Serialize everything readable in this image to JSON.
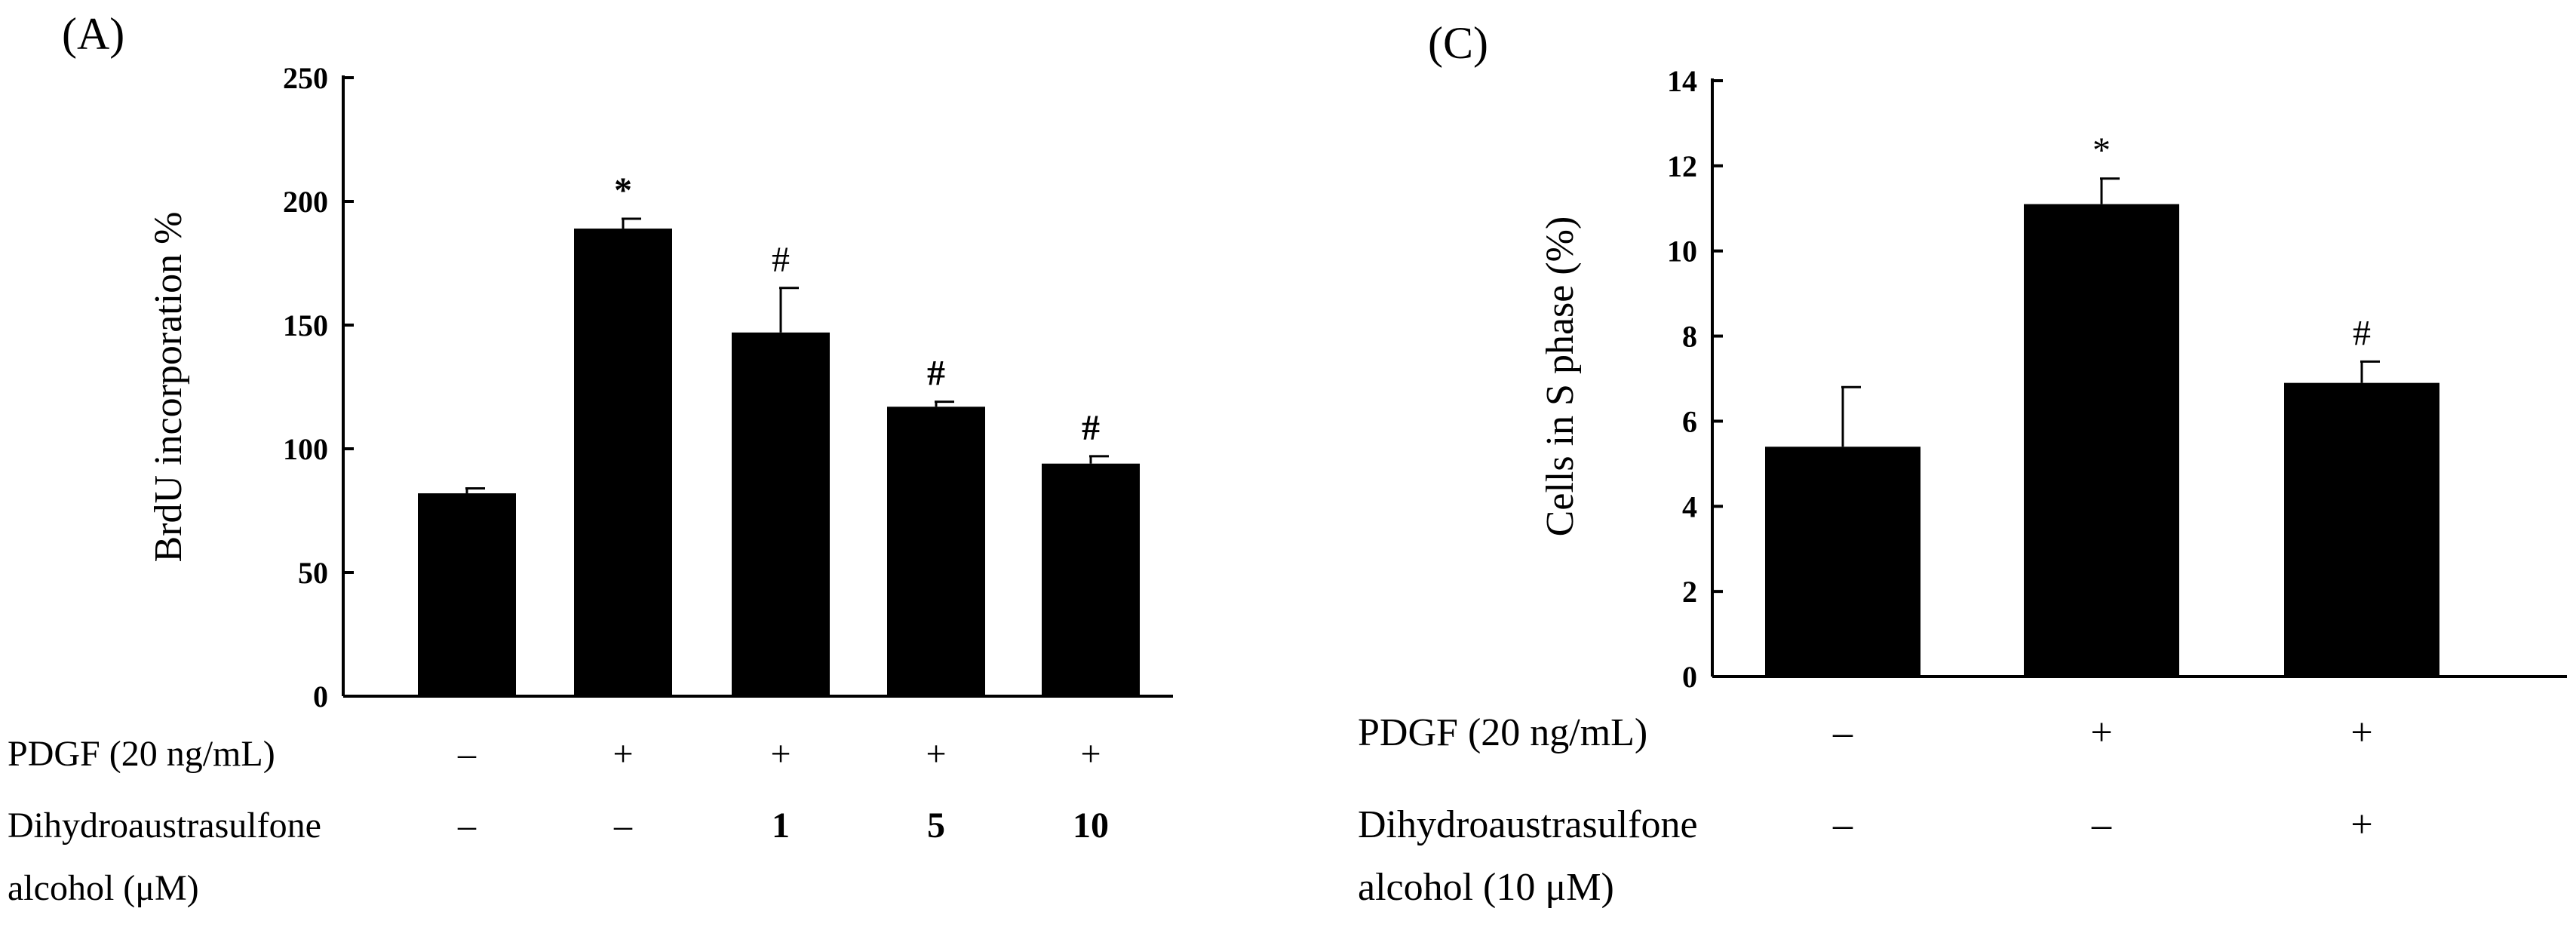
{
  "chart_data": [
    {
      "panel_label": "(A)",
      "type": "bar",
      "ylabel": "BrdU incorporation %",
      "ylim": [
        0,
        250
      ],
      "yticks": [
        0,
        50,
        100,
        150,
        200,
        250
      ],
      "ytick_labels": [
        "0",
        "50",
        "100",
        "150",
        "200",
        "250"
      ],
      "values": [
        82,
        189,
        147,
        117,
        94
      ],
      "errors": [
        2,
        4,
        18,
        2,
        3
      ],
      "annotations": [
        "",
        "*",
        "#",
        "#",
        "#"
      ],
      "annotation_bold": [
        false,
        true,
        false,
        true,
        true
      ],
      "condition_rows": [
        {
          "label": "PDGF (20 ng/mL)",
          "values": [
            "–",
            "+",
            "+",
            "+",
            "+"
          ],
          "bold": false
        },
        {
          "label": "Dihydroaustrasulfone",
          "label2": "alcohol (μM)",
          "values": [
            "–",
            "–",
            "1",
            "5",
            "10"
          ],
          "bold": true
        }
      ]
    },
    {
      "panel_label": "(C)",
      "type": "bar",
      "ylabel": "Cells in S phase (%)",
      "ylim": [
        0,
        14
      ],
      "yticks": [
        0,
        2,
        4,
        6,
        8,
        10,
        12,
        14
      ],
      "ytick_labels": [
        "0",
        "2",
        "4",
        "6",
        "8",
        "10",
        "12",
        "14"
      ],
      "values": [
        5.4,
        11.1,
        6.9
      ],
      "errors": [
        1.4,
        0.6,
        0.5
      ],
      "annotations": [
        "",
        "*",
        "#"
      ],
      "annotation_bold": [
        false,
        false,
        false
      ],
      "condition_rows": [
        {
          "label": "PDGF (20 ng/mL)",
          "values": [
            "–",
            "+",
            "+"
          ],
          "bold": false
        },
        {
          "label": "Dihydroaustrasulfone",
          "label2": "alcohol (10 μM)",
          "values": [
            "–",
            "–",
            "+"
          ],
          "bold": false
        }
      ]
    }
  ]
}
